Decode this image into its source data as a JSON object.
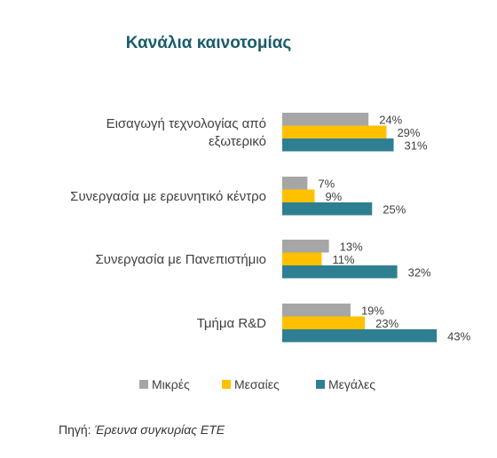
{
  "chart_data": {
    "type": "bar",
    "orientation": "horizontal",
    "title": "Κανάλια καινοτομίας",
    "categories": [
      [
        "Εισαγωγή τεχνολογίας από",
        "εξωτερικό"
      ],
      [
        "Συνεργασία με ερευνητικό κέντρο"
      ],
      [
        "Συνεργασία με Πανεπιστήμιο"
      ],
      [
        "Τμήμα R&D"
      ]
    ],
    "series": [
      {
        "name": "Μικρές",
        "color": "#a6a6a6",
        "values": [
          24,
          7,
          13,
          19
        ]
      },
      {
        "name": "Μεσαίες",
        "color": "#ffc000",
        "values": [
          29,
          9,
          11,
          23
        ]
      },
      {
        "name": "Μεγάλες",
        "color": "#2e7f92",
        "values": [
          31,
          25,
          32,
          43
        ]
      }
    ],
    "value_suffix": "%",
    "xlim": [
      0,
      43
    ],
    "legend_position": "bottom",
    "grid": false
  },
  "source": {
    "label": "Πηγή:",
    "text": "Έρευνα συγκυρίας ΕΤΕ"
  }
}
